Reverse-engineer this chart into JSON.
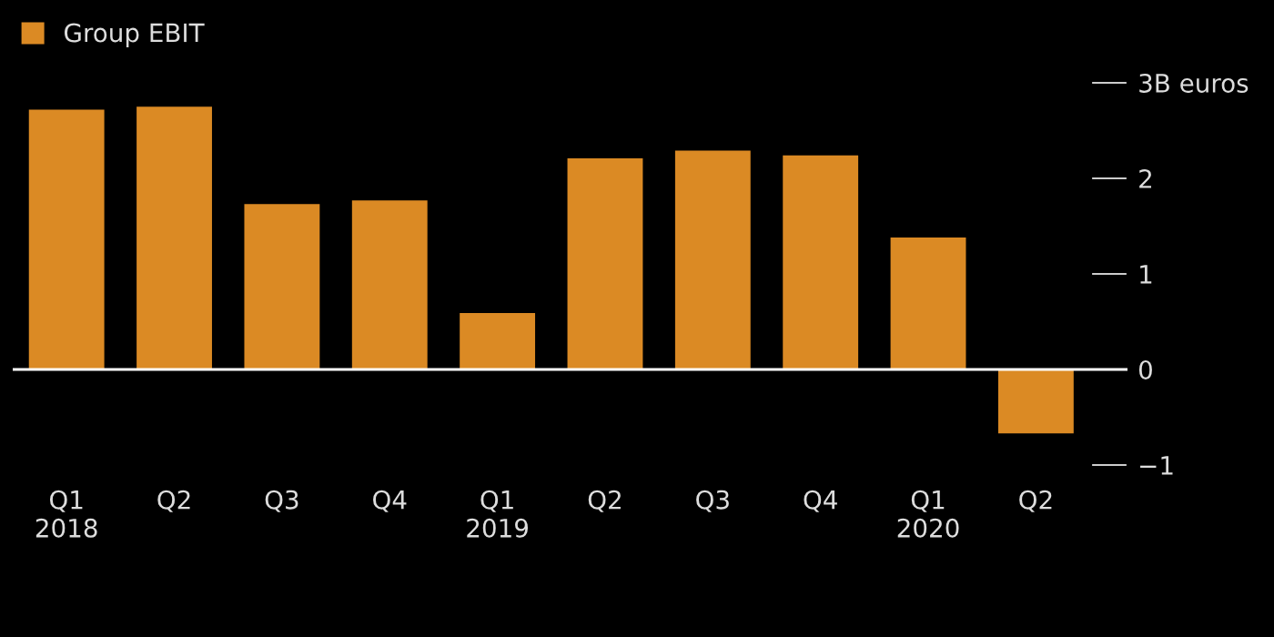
{
  "chart_data": {
    "type": "bar",
    "categories": [
      "Q1\n2018",
      "Q2",
      "Q3",
      "Q4",
      "Q1\n2019",
      "Q2",
      "Q3",
      "Q4",
      "Q1\n2020",
      "Q2"
    ],
    "series": [
      {
        "name": "Group EBIT",
        "color": "#db8a24",
        "values": [
          2.72,
          2.75,
          1.73,
          1.77,
          0.59,
          2.21,
          2.29,
          2.24,
          1.38,
          -0.67
        ]
      }
    ],
    "ylim": [
      -1.1,
      3.1
    ],
    "yticks": [
      {
        "value": 3,
        "label": "3B euros"
      },
      2,
      1,
      0,
      -1
    ],
    "ref_lines": [
      {
        "axis": "y",
        "value": 0,
        "color": "#ffffff"
      }
    ],
    "legend": "top left",
    "grid": false
  }
}
